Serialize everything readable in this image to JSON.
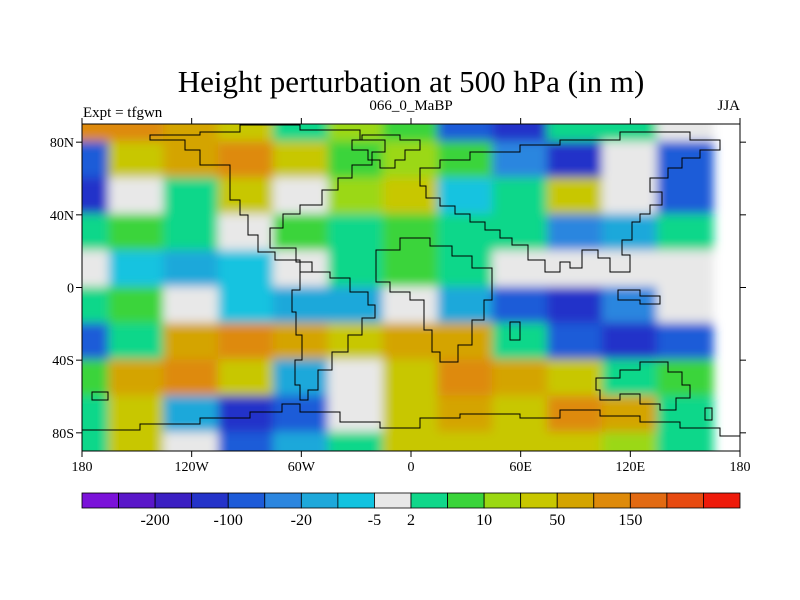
{
  "chart_data": {
    "type": "heatmap",
    "title": "Height perturbation at 500 hPa (in m)",
    "subtitle_left": "Expt = tfgwn",
    "subtitle_center": "066_0_MaBP",
    "subtitle_right": "JJA",
    "x": {
      "range": [
        -180,
        180
      ],
      "ticks": [
        -180,
        -120,
        -60,
        0,
        60,
        120,
        180
      ],
      "tick_labels": [
        "180",
        "120W",
        "60W",
        "0",
        "60E",
        "120E",
        "180"
      ]
    },
    "y": {
      "range": [
        -90,
        90
      ],
      "ticks": [
        80,
        40,
        0,
        -40,
        -80
      ],
      "tick_labels": [
        "80N",
        "40N",
        "0",
        "40S",
        "80S"
      ]
    },
    "colorbar": {
      "colors": [
        "#7b12d9",
        "#5a17c9",
        "#3b1fc2",
        "#2433c9",
        "#1d5bd8",
        "#2c86df",
        "#1ea8da",
        "#12c3e0",
        "#e8e8e8",
        "#10d78a",
        "#3ad43a",
        "#9bd812",
        "#c8c700",
        "#d4a400",
        "#de8a0a",
        "#e26a12",
        "#e74a10",
        "#ee1a0a"
      ],
      "labels": [
        "-200",
        "-100",
        "-20",
        "-5",
        "2",
        "10",
        "50",
        "150"
      ],
      "label_after_box": [
        1,
        3,
        5,
        7,
        8,
        10,
        12,
        14
      ]
    },
    "field": {
      "lon": [
        -180,
        -150,
        -120,
        -90,
        -60,
        -30,
        0,
        30,
        60,
        90,
        120,
        150
      ],
      "lat": [
        90,
        70,
        50,
        30,
        10,
        -10,
        -30,
        -50,
        -70,
        -90
      ],
      "class_index": [
        [
          14,
          14,
          13,
          12,
          9,
          11,
          10,
          4,
          3,
          9,
          9,
          8
        ],
        [
          4,
          12,
          13,
          14,
          12,
          10,
          11,
          10,
          5,
          3,
          8,
          4
        ],
        [
          3,
          8,
          9,
          12,
          8,
          11,
          12,
          7,
          9,
          12,
          8,
          4
        ],
        [
          9,
          10,
          9,
          8,
          10,
          9,
          10,
          9,
          9,
          5,
          6,
          9
        ],
        [
          8,
          7,
          6,
          7,
          8,
          9,
          10,
          9,
          8,
          8,
          8,
          8
        ],
        [
          9,
          10,
          8,
          7,
          6,
          6,
          8,
          6,
          4,
          3,
          5,
          8
        ],
        [
          4,
          9,
          13,
          14,
          13,
          12,
          13,
          13,
          9,
          4,
          3,
          4
        ],
        [
          10,
          13,
          14,
          12,
          6,
          8,
          12,
          14,
          13,
          12,
          9,
          10
        ],
        [
          9,
          12,
          6,
          3,
          4,
          8,
          12,
          13,
          12,
          14,
          13,
          9
        ],
        [
          9,
          12,
          8,
          4,
          6,
          9,
          12,
          12,
          12,
          12,
          11,
          9
        ]
      ]
    }
  }
}
